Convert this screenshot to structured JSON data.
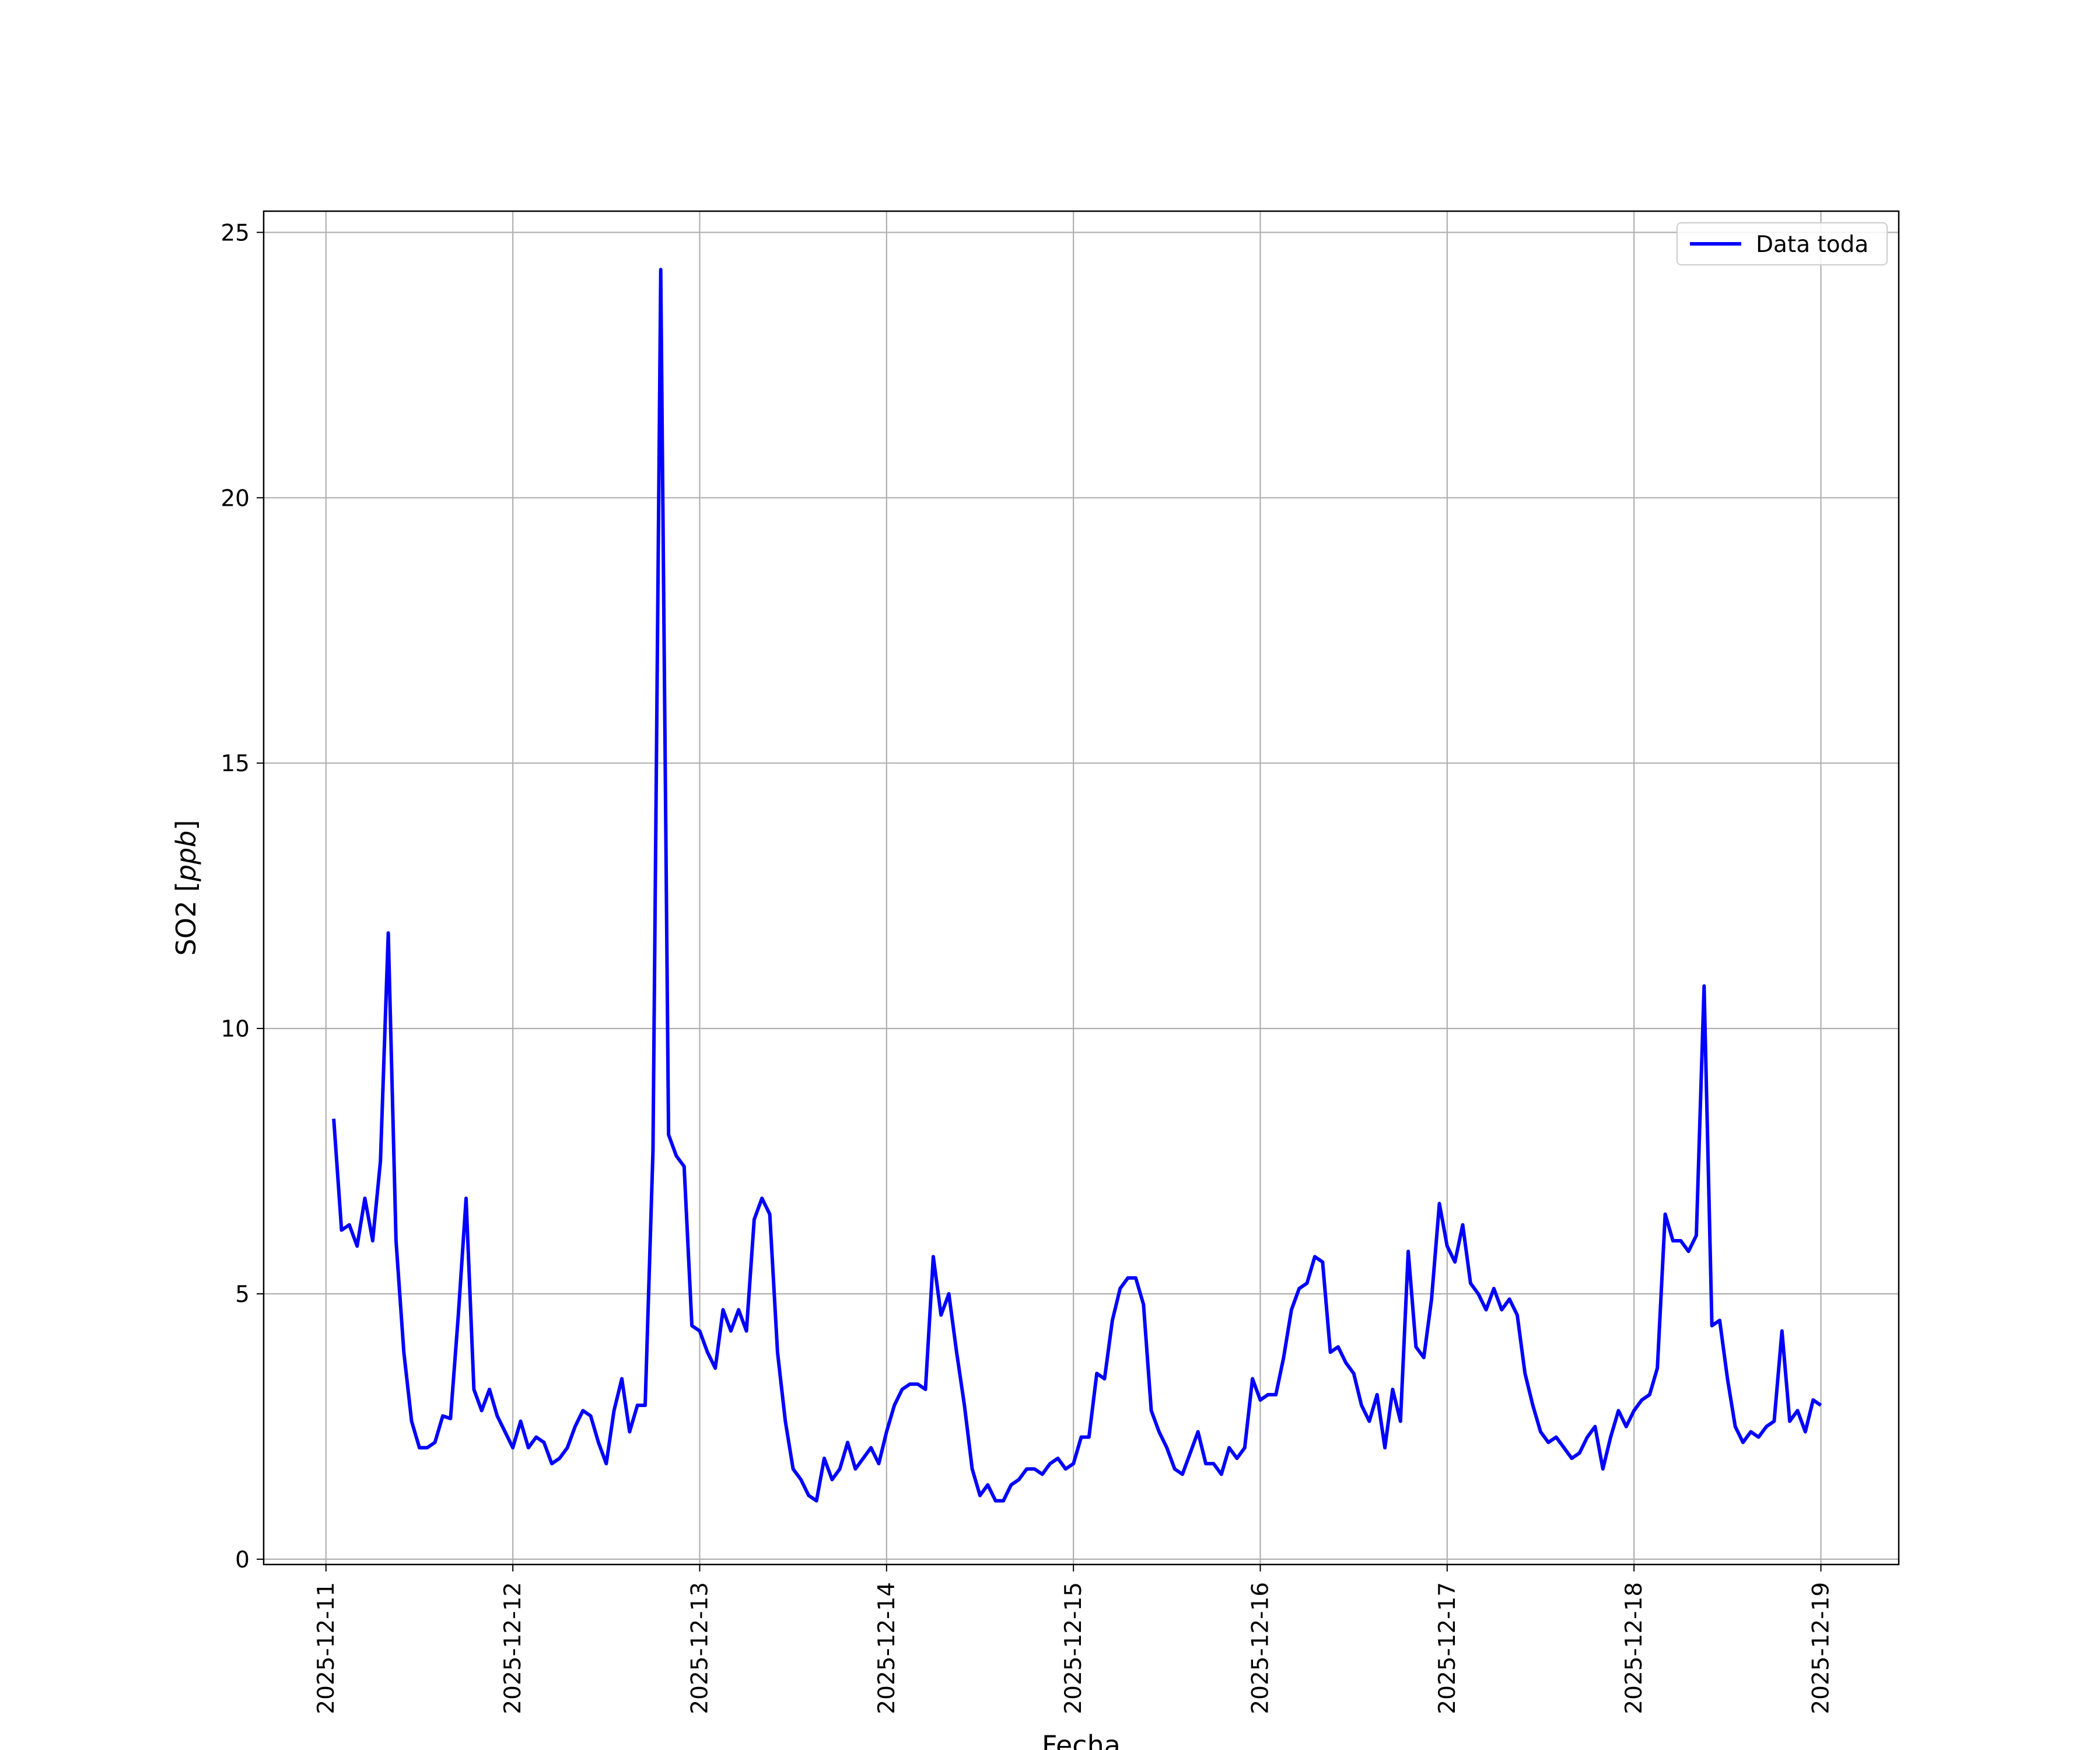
{
  "chart_data": {
    "type": "line",
    "title": "",
    "xlabel": "Fecha",
    "ylabel": "SO2 [ppb]",
    "ylabel_parts": {
      "prefix": "SO2 [",
      "italic": "ppb",
      "suffix": "]"
    },
    "x_ticks": [
      "2025-12-11",
      "2025-12-12",
      "2025-12-13",
      "2025-12-14",
      "2025-12-15",
      "2025-12-16",
      "2025-12-17",
      "2025-12-18",
      "2025-12-19"
    ],
    "y_ticks": [
      0,
      5,
      10,
      15,
      20,
      25
    ],
    "xlim": [
      "2025-12-10 16:00",
      "2025-12-19 10:00"
    ],
    "ylim": [
      -0.1,
      25.4
    ],
    "grid": true,
    "legend": {
      "position": "top-right"
    },
    "series": [
      {
        "name": "Data toda",
        "color": "#0000ff",
        "time_step_hours": 1,
        "start": "2025-12-11 01:00",
        "values": [
          8.3,
          6.2,
          6.3,
          5.9,
          6.8,
          6.0,
          7.5,
          11.8,
          6.0,
          3.9,
          2.6,
          2.1,
          2.1,
          2.2,
          2.7,
          2.65,
          4.6,
          6.8,
          3.2,
          2.8,
          3.2,
          2.7,
          2.4,
          2.1,
          2.6,
          2.1,
          2.3,
          2.2,
          1.8,
          1.9,
          2.1,
          2.5,
          2.8,
          2.7,
          2.2,
          1.8,
          2.8,
          3.4,
          2.4,
          2.9,
          2.9,
          7.7,
          24.3,
          8.0,
          7.6,
          7.4,
          4.4,
          4.3,
          3.9,
          3.6,
          4.7,
          4.3,
          4.7,
          4.3,
          6.4,
          6.8,
          6.5,
          3.9,
          2.6,
          1.7,
          1.5,
          1.2,
          1.1,
          1.9,
          1.5,
          1.7,
          2.2,
          1.7,
          1.9,
          2.1,
          1.8,
          2.4,
          2.9,
          3.2,
          3.3,
          3.3,
          3.2,
          5.7,
          4.6,
          5.0,
          3.9,
          2.9,
          1.7,
          1.2,
          1.4,
          1.1,
          1.1,
          1.4,
          1.5,
          1.7,
          1.7,
          1.6,
          1.8,
          1.9,
          1.7,
          1.8,
          2.3,
          2.3,
          3.5,
          3.4,
          4.5,
          5.1,
          5.3,
          5.3,
          4.8,
          2.8,
          2.4,
          2.1,
          1.7,
          1.6,
          2.0,
          2.4,
          1.8,
          1.8,
          1.6,
          2.1,
          1.9,
          2.1,
          3.4,
          3.0,
          3.1,
          3.1,
          3.8,
          4.7,
          5.1,
          5.2,
          5.7,
          5.6,
          3.9,
          4.0,
          3.7,
          3.5,
          2.9,
          2.6,
          3.1,
          2.1,
          3.2,
          2.6,
          5.8,
          4.0,
          3.8,
          4.9,
          6.7,
          5.9,
          5.6,
          6.3,
          5.2,
          5.0,
          4.7,
          5.1,
          4.7,
          4.9,
          4.6,
          3.5,
          2.9,
          2.4,
          2.2,
          2.3,
          2.1,
          1.9,
          2.0,
          2.3,
          2.5,
          1.7,
          2.3,
          2.8,
          2.5,
          2.8,
          3.0,
          3.1,
          3.6,
          6.5,
          6.0,
          6.0,
          5.8,
          6.1,
          10.8,
          4.4,
          4.5,
          3.4,
          2.5,
          2.2,
          2.4,
          2.3,
          2.5,
          2.6,
          4.3,
          2.6,
          2.8,
          2.4,
          3.0,
          2.9
        ]
      }
    ]
  }
}
